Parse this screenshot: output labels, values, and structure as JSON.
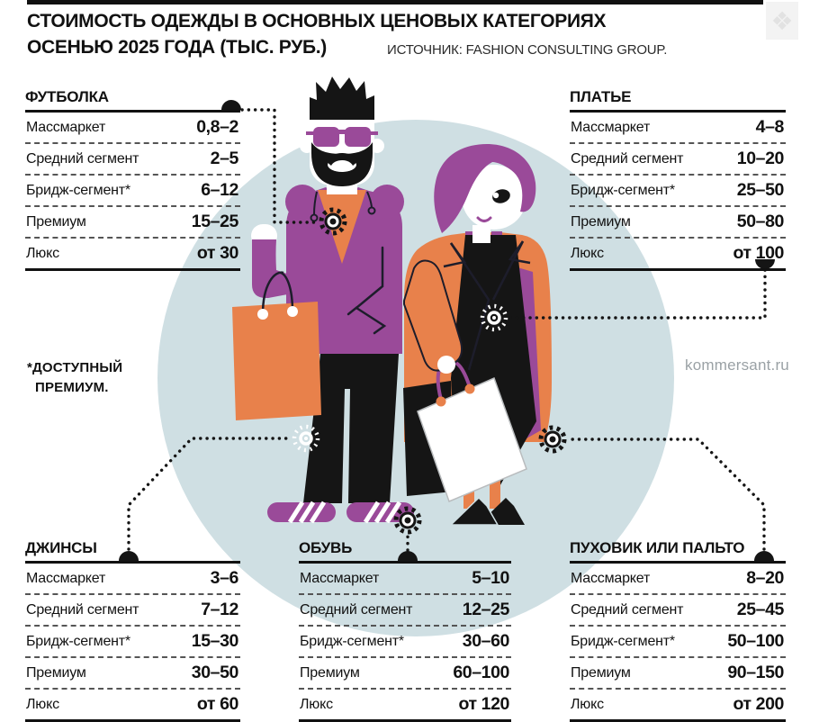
{
  "header": {
    "title_line1": "СТОИМОСТЬ ОДЕЖДЫ В ОСНОВНЫХ ЦЕНОВЫХ КАТЕГОРИЯХ",
    "title_line2": "ОСЕНЬЮ 2025 ГОДА (ТЫС. РУБ.)",
    "source": "ИСТОЧНИК: FASHION CONSULTING GROUP."
  },
  "footnote": {
    "line1": "*ДОСТУПНЫЙ",
    "line2": "ПРЕМИУМ."
  },
  "watermark": "kommersant.ru",
  "ornament_glyph": "❖",
  "colors": {
    "purple": "#9a4a99",
    "orange": "#e8814b",
    "circle_blue": "#cfdfe3",
    "ink": "#151515"
  },
  "tables": [
    {
      "id": "tshirt",
      "title": "ФУТБОЛКА",
      "rows": [
        {
          "label": "Массмаркет",
          "value": "0,8–2"
        },
        {
          "label": "Средний сегмент",
          "value": "2–5"
        },
        {
          "label": "Бридж-сегмент*",
          "value": "6–12"
        },
        {
          "label": "Премиум",
          "value": "15–25"
        },
        {
          "label": "Люкс",
          "value": "от 30"
        }
      ]
    },
    {
      "id": "dress",
      "title": "ПЛАТЬЕ",
      "rows": [
        {
          "label": "Массмаркет",
          "value": "4–8"
        },
        {
          "label": "Средний сегмент",
          "value": "10–20"
        },
        {
          "label": "Бридж-сегмент*",
          "value": "25–50"
        },
        {
          "label": "Премиум",
          "value": "50–80"
        },
        {
          "label": "Люкс",
          "value": "от 100"
        }
      ]
    },
    {
      "id": "jeans",
      "title": "ДЖИНСЫ",
      "rows": [
        {
          "label": "Массмаркет",
          "value": "3–6"
        },
        {
          "label": "Средний сегмент",
          "value": "7–12"
        },
        {
          "label": "Бридж-сегмент*",
          "value": "15–30"
        },
        {
          "label": "Премиум",
          "value": "30–50"
        },
        {
          "label": "Люкс",
          "value": "от 60"
        }
      ]
    },
    {
      "id": "shoes",
      "title": "ОБУВЬ",
      "rows": [
        {
          "label": "Массмаркет",
          "value": "5–10"
        },
        {
          "label": "Средний сегмент",
          "value": "12–25"
        },
        {
          "label": "Бридж-сегмент*",
          "value": "30–60"
        },
        {
          "label": "Премиум",
          "value": "60–100"
        },
        {
          "label": "Люкс",
          "value": "от 120"
        }
      ]
    },
    {
      "id": "coat",
      "title": "ПУХОВИК ИЛИ ПАЛЬТО",
      "rows": [
        {
          "label": "Массмаркет",
          "value": "8–20"
        },
        {
          "label": "Средний сегмент",
          "value": "25–45"
        },
        {
          "label": "Бридж-сегмент*",
          "value": "50–100"
        },
        {
          "label": "Премиум",
          "value": "90–150"
        },
        {
          "label": "Люкс",
          "value": "от 200"
        }
      ]
    }
  ],
  "chart_data": {
    "type": "table",
    "title": "СТОИМОСТЬ ОДЕЖДЫ В ОСНОВНЫХ ЦЕНОВЫХ КАТЕГОРИЯХ ОСЕНЬЮ 2025 ГОДА (ТЫС. РУБ.)",
    "source": "ИСТОЧНИК: FASHION CONSULTING GROUP.",
    "categories": [
      "Массмаркет",
      "Средний сегмент",
      "Бридж-сегмент*",
      "Премиум",
      "Люкс"
    ],
    "series": [
      {
        "name": "ФУТБОЛКА",
        "values": [
          "0,8–2",
          "2–5",
          "6–12",
          "15–25",
          "от 30"
        ]
      },
      {
        "name": "ПЛАТЬЕ",
        "values": [
          "4–8",
          "10–20",
          "25–50",
          "50–80",
          "от 100"
        ]
      },
      {
        "name": "ДЖИНСЫ",
        "values": [
          "3–6",
          "7–12",
          "15–30",
          "30–50",
          "от 60"
        ]
      },
      {
        "name": "ОБУВЬ",
        "values": [
          "5–10",
          "12–25",
          "30–60",
          "60–100",
          "от 120"
        ]
      },
      {
        "name": "ПУХОВИК ИЛИ ПАЛЬТО",
        "values": [
          "8–20",
          "25–45",
          "50–100",
          "90–150",
          "от 200"
        ]
      }
    ],
    "footnote": "*ДОСТУПНЫЙ ПРЕМИУМ.",
    "units": "тыс. руб."
  }
}
